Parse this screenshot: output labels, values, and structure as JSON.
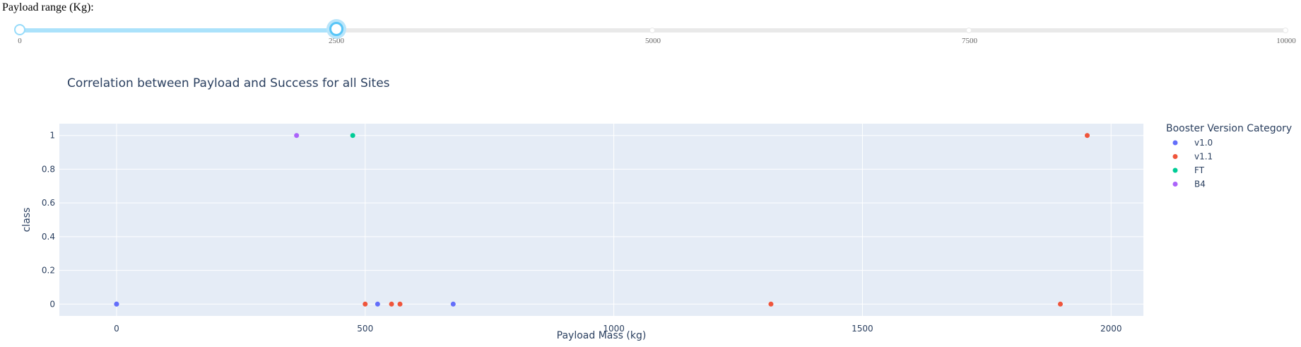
{
  "slider": {
    "label": "Payload range (Kg):",
    "min": 0,
    "max": 10000,
    "value": [
      0,
      2500
    ],
    "marks": [
      "0",
      "2500",
      "5000",
      "7500",
      "10000"
    ],
    "colors": {
      "track": "#abe2fb",
      "rail": "#e9e9e9",
      "handle": "#57c5f7"
    }
  },
  "chart_data": {
    "type": "scatter",
    "title": "Correlation between Payload and Success for all Sites",
    "xlabel": "Payload Mass (kg)",
    "ylabel": "class",
    "xlim": [
      -115,
      2065
    ],
    "ylim": [
      -0.07,
      1.07
    ],
    "xticks": [
      0,
      500,
      1000,
      1500,
      2000
    ],
    "yticks": [
      0,
      0.2,
      0.4,
      0.6,
      0.8,
      1
    ],
    "grid": true,
    "legend_title": "Booster Version Category",
    "legend_position": "right",
    "series": [
      {
        "name": "v1.0",
        "color": "#636efa",
        "points": [
          [
            0,
            0
          ],
          [
            0,
            0
          ],
          [
            525,
            0
          ],
          [
            677,
            0
          ]
        ]
      },
      {
        "name": "v1.1",
        "color": "#ef553b",
        "points": [
          [
            500,
            0
          ],
          [
            553,
            0
          ],
          [
            570,
            0
          ],
          [
            1316,
            0
          ],
          [
            1898,
            0
          ],
          [
            1952,
            1
          ]
        ]
      },
      {
        "name": "FT",
        "color": "#00cc96",
        "points": [
          [
            475,
            1
          ]
        ]
      },
      {
        "name": "B4",
        "color": "#ab63fa",
        "points": [
          [
            362,
            1
          ]
        ]
      }
    ]
  }
}
